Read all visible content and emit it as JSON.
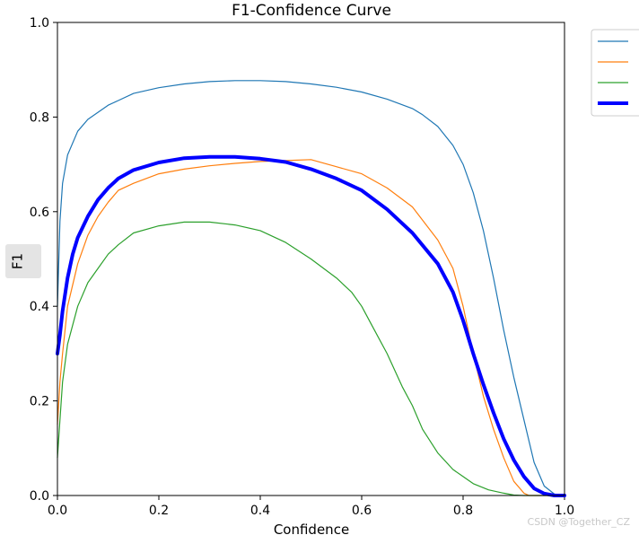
{
  "chart_data": {
    "type": "line",
    "title": "F1-Confidence Curve",
    "xlabel": "Confidence",
    "ylabel": "F1",
    "xlim": [
      0,
      1
    ],
    "ylim": [
      0,
      1
    ],
    "xticks": [
      "0.0",
      "0.2",
      "0.4",
      "0.6",
      "0.8",
      "1.0"
    ],
    "yticks": [
      "0.0",
      "0.2",
      "0.4",
      "0.6",
      "0.8",
      "1.0"
    ],
    "legend_position": "right-outside",
    "series": [
      {
        "color": "#1f77b4",
        "width": 1.2,
        "points": [
          [
            0,
            0.4
          ],
          [
            0.005,
            0.58
          ],
          [
            0.01,
            0.66
          ],
          [
            0.02,
            0.72
          ],
          [
            0.04,
            0.77
          ],
          [
            0.06,
            0.795
          ],
          [
            0.08,
            0.81
          ],
          [
            0.1,
            0.825
          ],
          [
            0.12,
            0.835
          ],
          [
            0.15,
            0.85
          ],
          [
            0.2,
            0.862
          ],
          [
            0.25,
            0.87
          ],
          [
            0.3,
            0.875
          ],
          [
            0.35,
            0.877
          ],
          [
            0.4,
            0.877
          ],
          [
            0.45,
            0.875
          ],
          [
            0.5,
            0.87
          ],
          [
            0.55,
            0.863
          ],
          [
            0.6,
            0.853
          ],
          [
            0.65,
            0.838
          ],
          [
            0.7,
            0.818
          ],
          [
            0.72,
            0.805
          ],
          [
            0.75,
            0.78
          ],
          [
            0.78,
            0.74
          ],
          [
            0.8,
            0.7
          ],
          [
            0.82,
            0.64
          ],
          [
            0.84,
            0.56
          ],
          [
            0.86,
            0.46
          ],
          [
            0.88,
            0.35
          ],
          [
            0.9,
            0.25
          ],
          [
            0.92,
            0.16
          ],
          [
            0.94,
            0.07
          ],
          [
            0.96,
            0.02
          ],
          [
            0.98,
            0.003
          ],
          [
            1.0,
            0.0
          ]
        ]
      },
      {
        "color": "#ff7f0e",
        "width": 1.2,
        "points": [
          [
            0,
            0.15
          ],
          [
            0.005,
            0.24
          ],
          [
            0.01,
            0.3
          ],
          [
            0.02,
            0.4
          ],
          [
            0.04,
            0.49
          ],
          [
            0.06,
            0.55
          ],
          [
            0.08,
            0.59
          ],
          [
            0.1,
            0.62
          ],
          [
            0.12,
            0.645
          ],
          [
            0.15,
            0.66
          ],
          [
            0.2,
            0.68
          ],
          [
            0.25,
            0.69
          ],
          [
            0.3,
            0.697
          ],
          [
            0.35,
            0.702
          ],
          [
            0.4,
            0.706
          ],
          [
            0.45,
            0.708
          ],
          [
            0.5,
            0.71
          ],
          [
            0.55,
            0.695
          ],
          [
            0.6,
            0.68
          ],
          [
            0.65,
            0.65
          ],
          [
            0.7,
            0.61
          ],
          [
            0.75,
            0.54
          ],
          [
            0.78,
            0.48
          ],
          [
            0.8,
            0.4
          ],
          [
            0.82,
            0.3
          ],
          [
            0.84,
            0.21
          ],
          [
            0.86,
            0.14
          ],
          [
            0.88,
            0.08
          ],
          [
            0.9,
            0.03
          ],
          [
            0.92,
            0.005
          ],
          [
            0.93,
            0.0
          ],
          [
            1.0,
            0.0
          ]
        ]
      },
      {
        "color": "#2ca02c",
        "width": 1.2,
        "points": [
          [
            0,
            0.08
          ],
          [
            0.005,
            0.16
          ],
          [
            0.01,
            0.24
          ],
          [
            0.02,
            0.32
          ],
          [
            0.04,
            0.4
          ],
          [
            0.06,
            0.45
          ],
          [
            0.08,
            0.48
          ],
          [
            0.1,
            0.51
          ],
          [
            0.12,
            0.53
          ],
          [
            0.15,
            0.555
          ],
          [
            0.2,
            0.57
          ],
          [
            0.25,
            0.578
          ],
          [
            0.3,
            0.578
          ],
          [
            0.35,
            0.572
          ],
          [
            0.4,
            0.56
          ],
          [
            0.45,
            0.535
          ],
          [
            0.5,
            0.5
          ],
          [
            0.55,
            0.46
          ],
          [
            0.58,
            0.43
          ],
          [
            0.6,
            0.4
          ],
          [
            0.62,
            0.36
          ],
          [
            0.65,
            0.3
          ],
          [
            0.68,
            0.23
          ],
          [
            0.7,
            0.19
          ],
          [
            0.72,
            0.14
          ],
          [
            0.75,
            0.09
          ],
          [
            0.78,
            0.055
          ],
          [
            0.8,
            0.04
          ],
          [
            0.82,
            0.025
          ],
          [
            0.85,
            0.012
          ],
          [
            0.88,
            0.005
          ],
          [
            0.9,
            0.001
          ],
          [
            0.92,
            0.0
          ],
          [
            1.0,
            0.0
          ]
        ]
      },
      {
        "color": "#0000ff",
        "width": 4,
        "points": [
          [
            0,
            0.3
          ],
          [
            0.005,
            0.34
          ],
          [
            0.01,
            0.39
          ],
          [
            0.02,
            0.46
          ],
          [
            0.03,
            0.51
          ],
          [
            0.04,
            0.545
          ],
          [
            0.06,
            0.59
          ],
          [
            0.08,
            0.625
          ],
          [
            0.1,
            0.65
          ],
          [
            0.12,
            0.67
          ],
          [
            0.15,
            0.688
          ],
          [
            0.2,
            0.704
          ],
          [
            0.25,
            0.713
          ],
          [
            0.3,
            0.716
          ],
          [
            0.35,
            0.716
          ],
          [
            0.4,
            0.712
          ],
          [
            0.45,
            0.705
          ],
          [
            0.5,
            0.69
          ],
          [
            0.55,
            0.67
          ],
          [
            0.6,
            0.645
          ],
          [
            0.65,
            0.605
          ],
          [
            0.7,
            0.555
          ],
          [
            0.75,
            0.49
          ],
          [
            0.78,
            0.43
          ],
          [
            0.8,
            0.37
          ],
          [
            0.82,
            0.3
          ],
          [
            0.84,
            0.235
          ],
          [
            0.86,
            0.175
          ],
          [
            0.88,
            0.12
          ],
          [
            0.9,
            0.075
          ],
          [
            0.92,
            0.04
          ],
          [
            0.94,
            0.015
          ],
          [
            0.96,
            0.004
          ],
          [
            0.98,
            0.0
          ],
          [
            1.0,
            0.0
          ]
        ]
      }
    ]
  },
  "watermark": "CSDN @Together_CZ"
}
